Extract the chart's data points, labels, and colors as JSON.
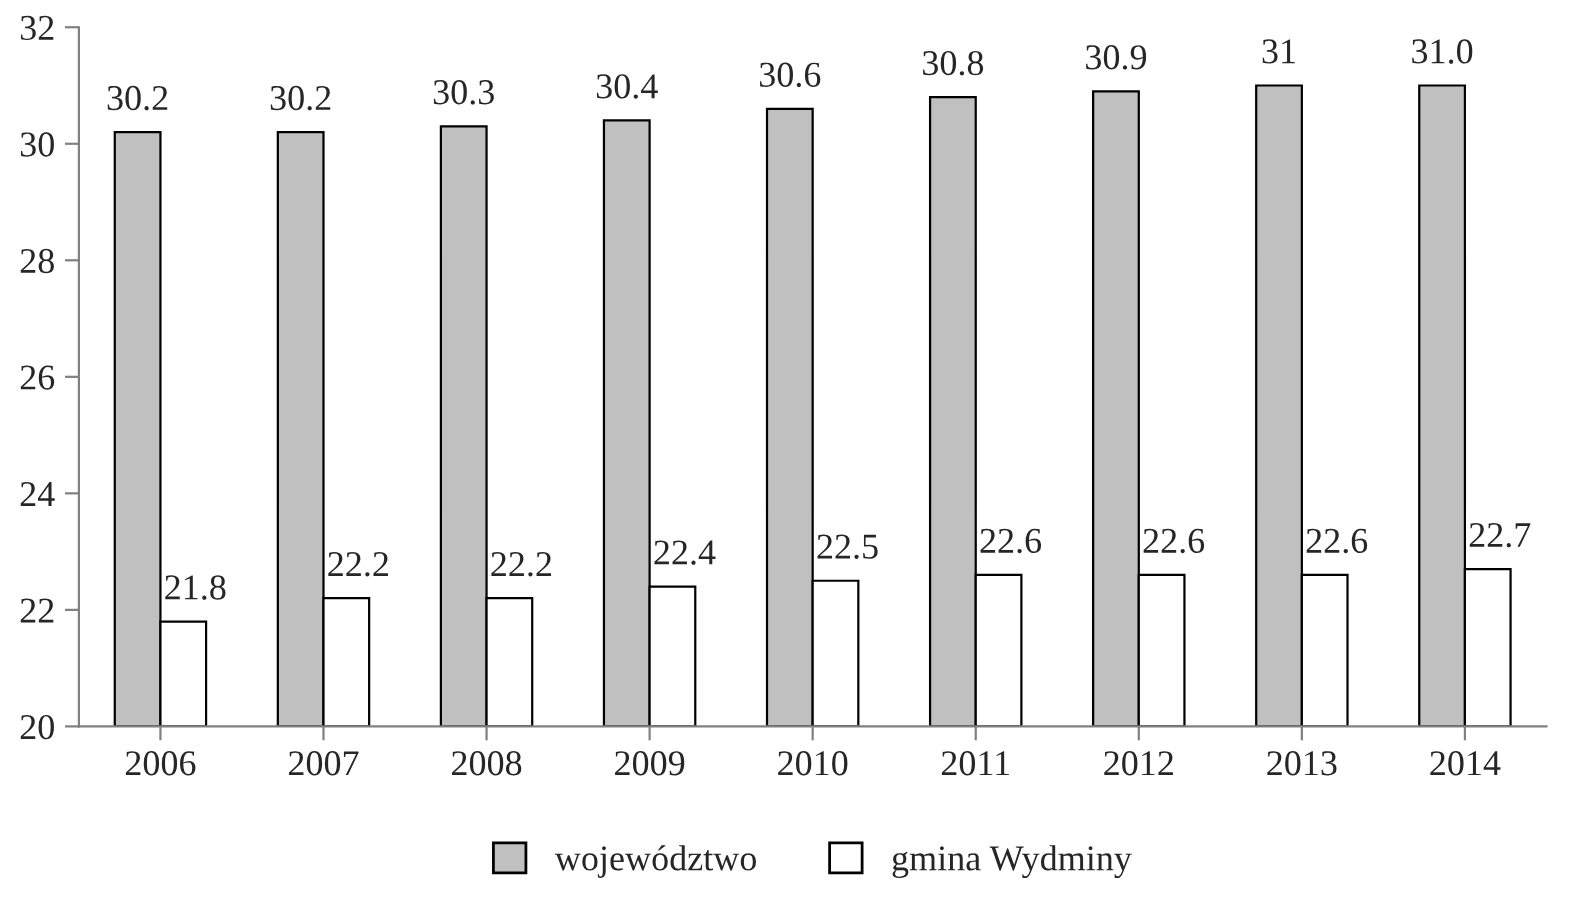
{
  "chart_data": {
    "type": "bar",
    "categories": [
      "2006",
      "2007",
      "2008",
      "2009",
      "2010",
      "2011",
      "2012",
      "2013",
      "2014"
    ],
    "series": [
      {
        "name": "województwo",
        "color": "#c0c0c0",
        "values": [
          30.2,
          30.2,
          30.3,
          30.4,
          30.6,
          30.8,
          30.9,
          31,
          31.0
        ],
        "value_labels": [
          "30.2",
          "30.2",
          "30.3",
          "30.4",
          "30.6",
          "30.8",
          "30.9",
          "31",
          "31.0"
        ]
      },
      {
        "name": "gmina Wydminy",
        "color": "#ffffff",
        "values": [
          21.8,
          22.2,
          22.2,
          22.4,
          22.5,
          22.6,
          22.6,
          22.6,
          22.7
        ],
        "value_labels": [
          "21.8",
          "22.2",
          "22.2",
          "22.4",
          "22.5",
          "22.6",
          "22.6",
          "22.6",
          "22.7"
        ]
      }
    ],
    "ylim": [
      20,
      32
    ],
    "yticks": [
      20,
      22,
      24,
      26,
      28,
      30,
      32
    ],
    "grid": false,
    "legend": "bottom"
  }
}
